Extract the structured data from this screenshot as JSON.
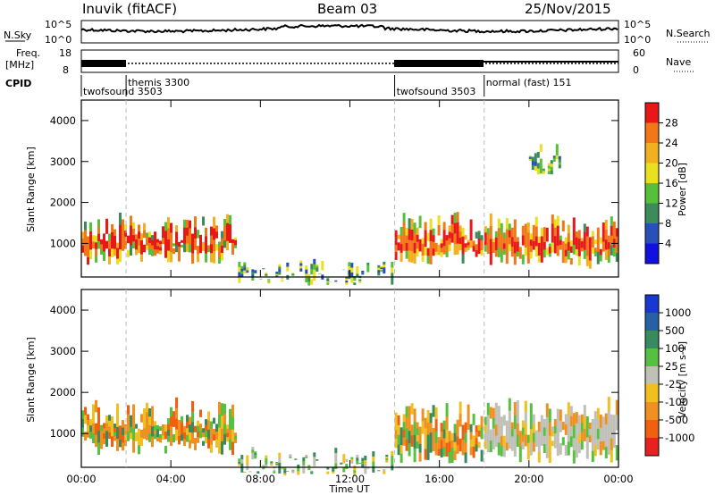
{
  "header": {
    "station": "Inuvik (fitACF)",
    "beam": "Beam 03",
    "date": "25/Nov/2015"
  },
  "strip": {
    "nsky_label": "N.Sky",
    "nsky_ticks": [
      "10^5",
      "10^0"
    ],
    "nsearch_label": "N.Search",
    "nsearch_ticks": [
      "10^5",
      "10^0"
    ],
    "freq_label": "Freq.",
    "freq_unit": "[MHz]",
    "freq_ticks": [
      "18",
      "8"
    ],
    "nave_label": "Nave",
    "nave_ticks": [
      "60",
      "0"
    ],
    "cpid_label": "CPID"
  },
  "cpid_segments": [
    {
      "label": "twofsound 3503",
      "start_hour": 0
    },
    {
      "label": "themis 3300",
      "start_hour": 2
    },
    {
      "label": "twofsound 3503",
      "start_hour": 14
    },
    {
      "label": "normal (fast) 151",
      "start_hour": 18
    }
  ],
  "axes": {
    "xlabel": "Time UT",
    "x_ticks": [
      "00:00",
      "04:00",
      "08:00",
      "12:00",
      "16:00",
      "20:00",
      "00:00"
    ],
    "x_range_hours": [
      0,
      24
    ],
    "ylabel": "Slant Range [km]",
    "y_ticks": [
      1000,
      2000,
      3000,
      4000
    ],
    "y_range_km": [
      180,
      4500
    ]
  },
  "chart_data": [
    {
      "type": "heatmap",
      "title": "",
      "xlabel": "",
      "ylabel": "Slant Range [km]",
      "colorbar_label": "Power [dB]",
      "colorbar_ticks": [
        4,
        8,
        12,
        16,
        20,
        24,
        28
      ],
      "colorbar_range": [
        0,
        32
      ],
      "colors": [
        "#1010e0",
        "#2850b8",
        "#3d8b5a",
        "#56c03a",
        "#e8e020",
        "#f0b020",
        "#f07818",
        "#e81818"
      ],
      "regions": [
        {
          "x": [
            0,
            7
          ],
          "y": [
            700,
            1500
          ],
          "value": 28
        },
        {
          "x": [
            14,
            18
          ],
          "y": [
            700,
            1500
          ],
          "value": 26
        },
        {
          "x": [
            18,
            24
          ],
          "y": [
            600,
            1500
          ],
          "value": 28
        },
        {
          "x": [
            7,
            14
          ],
          "y": [
            200,
            400
          ],
          "value": 14
        },
        {
          "x": [
            20,
            21.5
          ],
          "y": [
            2900,
            3300
          ],
          "value": 10
        }
      ]
    },
    {
      "type": "heatmap",
      "title": "",
      "xlabel": "Time UT",
      "ylabel": "Slant Range [km]",
      "colorbar_label": "Velocity [m s-1]",
      "colorbar_ticks": [
        "1000",
        "500",
        "100",
        "25",
        "-25",
        "-100",
        "-500",
        "-1000"
      ],
      "colors": [
        "#1838d0",
        "#2860a8",
        "#3a8a60",
        "#56c040",
        "#c0c0b8",
        "#f0c020",
        "#f09020",
        "#f06010",
        "#e82020"
      ],
      "regions": [
        {
          "x": [
            0,
            7
          ],
          "y": [
            700,
            1600
          ],
          "value": -100
        },
        {
          "x": [
            14,
            18
          ],
          "y": [
            500,
            1500
          ],
          "value": -100
        },
        {
          "x": [
            18,
            24
          ],
          "y": [
            500,
            1600
          ],
          "value": 0
        },
        {
          "x": [
            7,
            14
          ],
          "y": [
            200,
            400
          ],
          "value": 25
        }
      ]
    }
  ]
}
